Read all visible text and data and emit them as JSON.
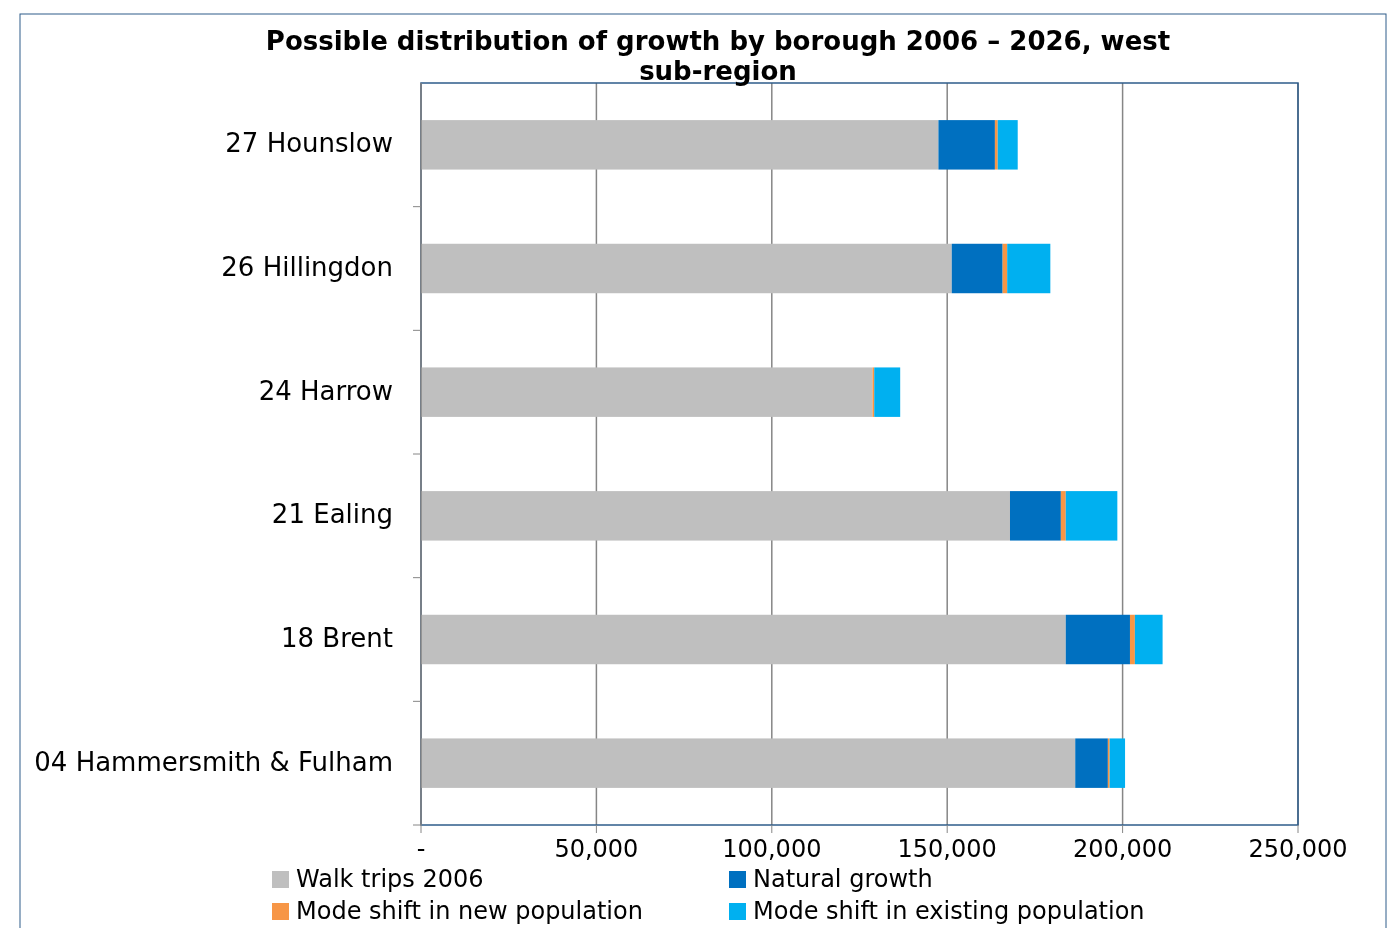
{
  "chart_data": {
    "type": "bar",
    "title": "Possible distribution of growth by borough 2006 – 2026, west sub-region",
    "orientation": "horizontal",
    "stacked": true,
    "categories": [
      "27 Hounslow",
      "26 Hillingdon",
      "24 Harrow",
      "21 Ealing",
      "18 Brent",
      "04 Hammersmith & Fulham"
    ],
    "series": [
      {
        "name": "Walk trips 2006",
        "color": "#bfbfbf",
        "values": [
          147500,
          151300,
          128700,
          167900,
          183800,
          186500
        ]
      },
      {
        "name": "Natural growth",
        "color": "#0070c0",
        "values": [
          16100,
          14500,
          0,
          14500,
          18300,
          9300
        ]
      },
      {
        "name": "Mode shift in new population",
        "color": "#f79646",
        "values": [
          800,
          1300,
          500,
          1400,
          1400,
          500
        ]
      },
      {
        "name": "Mode shift in existing population",
        "color": "#00b0f0",
        "values": [
          5700,
          12300,
          7400,
          14700,
          7900,
          4400
        ]
      }
    ],
    "xlim": [
      0,
      250000
    ],
    "xticks": [
      {
        "value": 0,
        "label": "-"
      },
      {
        "value": 50000,
        "label": "50,000"
      },
      {
        "value": 100000,
        "label": "100,000"
      },
      {
        "value": 150000,
        "label": "150,000"
      },
      {
        "value": 200000,
        "label": "200,000"
      },
      {
        "value": 250000,
        "label": "250,000"
      }
    ],
    "grid": "x",
    "legend": "bottom"
  }
}
